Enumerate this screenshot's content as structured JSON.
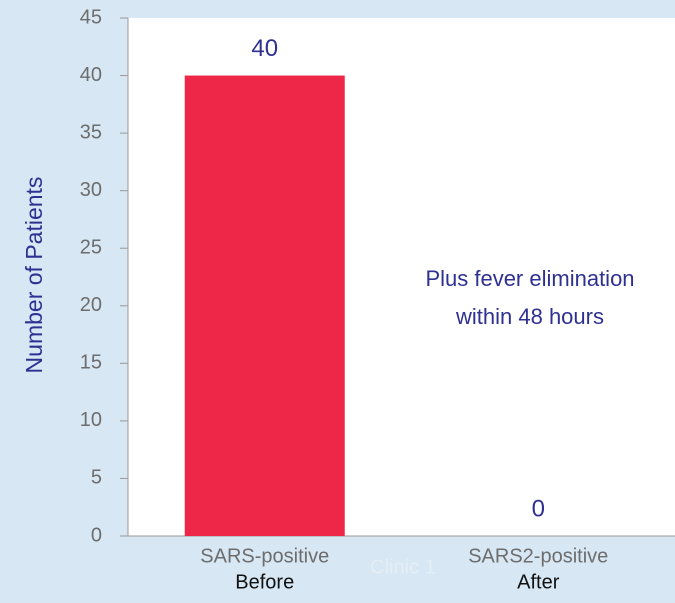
{
  "chart_data": {
    "type": "bar",
    "y_label": "Number of Patients",
    "x_label": "Clinic 1",
    "categories": [
      "SARS-positive",
      "SARS2-positive"
    ],
    "groups": [
      "Before",
      "After"
    ],
    "values": [
      40,
      0
    ],
    "color": "#ee2647",
    "ylim": [
      0,
      45
    ],
    "yticks": [
      0,
      5,
      10,
      15,
      20,
      25,
      30,
      35,
      40,
      45
    ],
    "annotation": [
      "Plus fever elimination",
      "within 48 hours"
    ],
    "grid": false
  }
}
